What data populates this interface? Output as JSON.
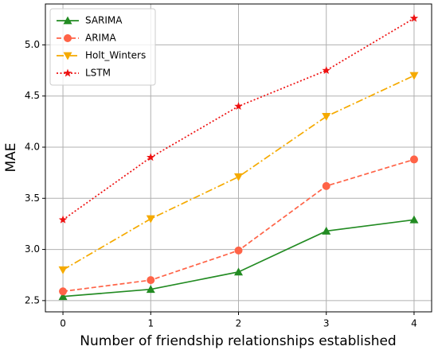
{
  "chart_data": {
    "type": "line",
    "xlabel": "Number of friendship relationships established",
    "ylabel": "MAE",
    "x": [
      0,
      1,
      2,
      3,
      4
    ],
    "series": [
      {
        "name": "SARIMA",
        "color": "#228b22",
        "marker": "triangle-up",
        "linestyle": "solid",
        "values": [
          2.54,
          2.61,
          2.78,
          3.18,
          3.29
        ]
      },
      {
        "name": "ARIMA",
        "color": "#ff6347",
        "marker": "circle",
        "linestyle": "dashed",
        "values": [
          2.59,
          2.7,
          2.99,
          3.62,
          3.88
        ]
      },
      {
        "name": "Holt_Winters",
        "color": "#f5aa00",
        "marker": "triangle-down",
        "linestyle": "dashdot",
        "values": [
          2.8,
          3.3,
          3.71,
          4.3,
          4.7
        ]
      },
      {
        "name": "LSTM",
        "color": "#ee1111",
        "marker": "star",
        "linestyle": "dotted",
        "values": [
          3.29,
          3.9,
          4.4,
          4.75,
          5.26
        ]
      }
    ],
    "xlim": [
      -0.2,
      4.2
    ],
    "ylim": [
      2.39,
      5.4
    ],
    "xticks": [
      0,
      1,
      2,
      3,
      4
    ],
    "yticks": [
      2.5,
      {
        "value": 3,
        "label": "3.0"
      },
      3.5,
      {
        "value": 4,
        "label": "4.0"
      },
      4.5,
      {
        "value": 5,
        "label": "5.0"
      }
    ],
    "grid": true,
    "legend": "upper left"
  }
}
